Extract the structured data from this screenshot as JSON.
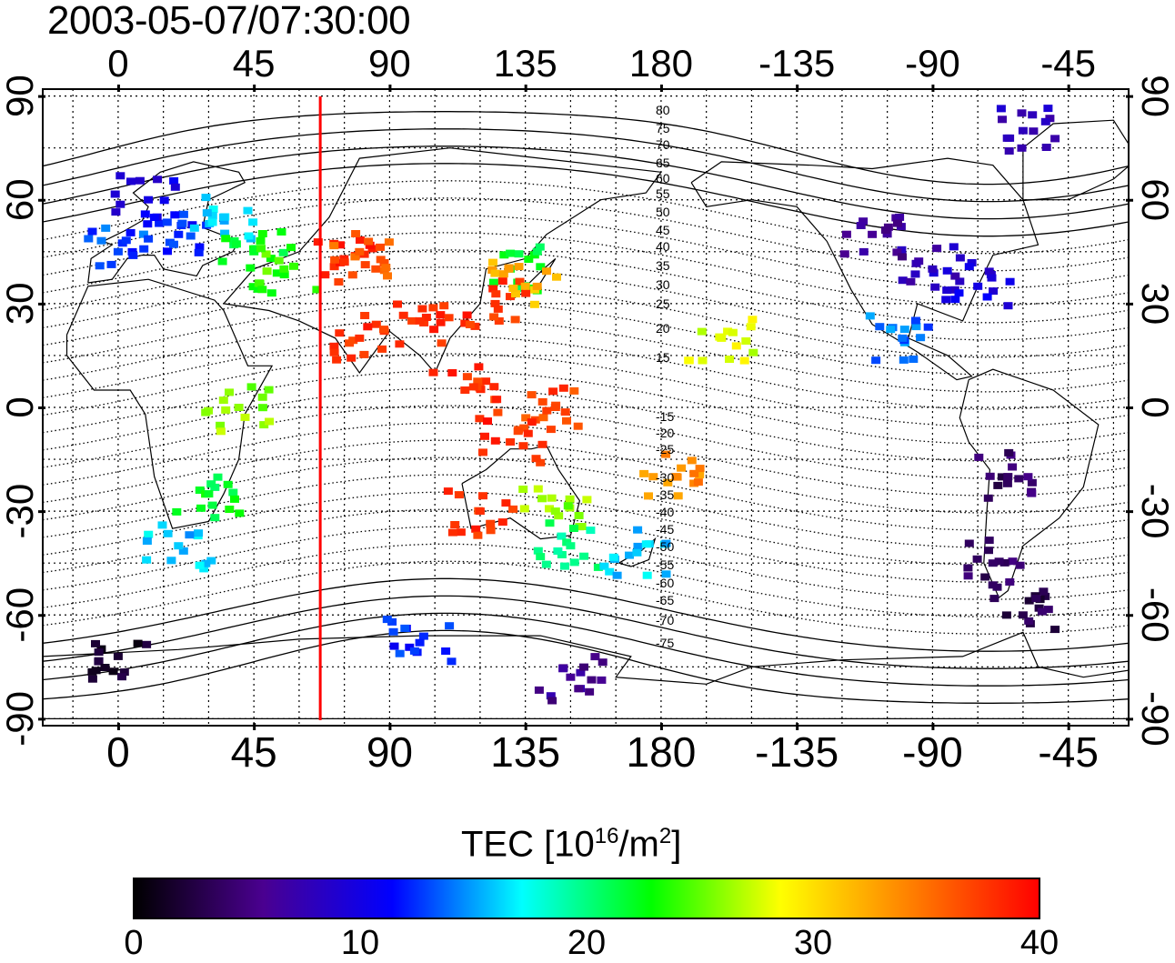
{
  "title": "2003-05-07/07:30:00",
  "axes": {
    "lon_ticks_top": [
      "0",
      "45",
      "90",
      "135",
      "180",
      "-135",
      "-90",
      "-45"
    ],
    "lon_ticks_bottom": [
      "0",
      "45",
      "90",
      "135",
      "180",
      "-135",
      "-90",
      "-45"
    ],
    "lat_ticks": [
      "90",
      "60",
      "30",
      "0",
      "-30",
      "-60",
      "-90"
    ],
    "lon_range": [
      -25,
      335
    ],
    "lat_range": [
      -92,
      92
    ]
  },
  "magnetic_latitude_labels": [
    "80",
    "75",
    "70",
    "65",
    "60",
    "55",
    "50",
    "45",
    "40",
    "35",
    "30",
    "25",
    "20",
    "15",
    "-15",
    "-20",
    "-25",
    "-30",
    "-35",
    "-40",
    "-45",
    "-50",
    "-55",
    "-60",
    "-65",
    "-70",
    "-75"
  ],
  "meridian_line_lon": 67,
  "colorbar": {
    "label_main": "TEC  [10",
    "label_exp1": "16",
    "label_mid": "/m",
    "label_exp2": "2",
    "label_end": "]",
    "min": 0,
    "max": 40,
    "ticks": [
      "0",
      "10",
      "20",
      "30",
      "40"
    ],
    "colors": [
      "#000000",
      "#4a0090",
      "#0000ff",
      "#00ffff",
      "#00ff00",
      "#ffff00",
      "#ff8000",
      "#ff0000"
    ]
  },
  "chart_data": {
    "type": "heatmap",
    "title": "2003-05-07/07:30:00",
    "xlabel": "",
    "ylabel": "",
    "value_label": "TEC [10^16/m^2]",
    "points": [
      {
        "lon": 20,
        "lat": 50,
        "tec": 12
      },
      {
        "lon": 35,
        "lat": 55,
        "tec": 16
      },
      {
        "lon": 10,
        "lat": 60,
        "tec": 10
      },
      {
        "lon": 0,
        "lat": 45,
        "tec": 13
      },
      {
        "lon": 45,
        "lat": 45,
        "tec": 22
      },
      {
        "lon": 55,
        "lat": 40,
        "tec": 24
      },
      {
        "lon": 75,
        "lat": 42,
        "tec": 38
      },
      {
        "lon": 80,
        "lat": 45,
        "tec": 36
      },
      {
        "lon": 130,
        "lat": 40,
        "tec": 22
      },
      {
        "lon": 125,
        "lat": 30,
        "tec": 38
      },
      {
        "lon": 135,
        "lat": 35,
        "tec": 32
      },
      {
        "lon": 100,
        "lat": 25,
        "tec": 38
      },
      {
        "lon": 80,
        "lat": 20,
        "tec": 38
      },
      {
        "lon": 115,
        "lat": 5,
        "tec": 38
      },
      {
        "lon": 145,
        "lat": 0,
        "tec": 37
      },
      {
        "lon": 130,
        "lat": -10,
        "tec": 38
      },
      {
        "lon": 120,
        "lat": -30,
        "tec": 38
      },
      {
        "lon": 145,
        "lat": -30,
        "tec": 26
      },
      {
        "lon": 150,
        "lat": -40,
        "tec": 20
      },
      {
        "lon": 172,
        "lat": -42,
        "tec": 16
      },
      {
        "lon": 185,
        "lat": -20,
        "tec": 34
      },
      {
        "lon": 200,
        "lat": 20,
        "tec": 28
      },
      {
        "lon": 270,
        "lat": 40,
        "tec": 8
      },
      {
        "lon": 250,
        "lat": 50,
        "tec": 6
      },
      {
        "lon": 285,
        "lat": 35,
        "tec": 10
      },
      {
        "lon": 260,
        "lat": 20,
        "tec": 14
      },
      {
        "lon": 295,
        "lat": -20,
        "tec": 4
      },
      {
        "lon": 290,
        "lat": -45,
        "tec": 4
      },
      {
        "lon": 300,
        "lat": -60,
        "tec": 3
      },
      {
        "lon": 30,
        "lat": -25,
        "tec": 22
      },
      {
        "lon": 40,
        "lat": 0,
        "tec": 26
      },
      {
        "lon": 20,
        "lat": -40,
        "tec": 16
      },
      {
        "lon": 100,
        "lat": -68,
        "tec": 12
      },
      {
        "lon": 150,
        "lat": -78,
        "tec": 6
      },
      {
        "lon": 0,
        "lat": -72,
        "tec": 2
      },
      {
        "lon": 300,
        "lat": 80,
        "tec": 8
      }
    ]
  }
}
